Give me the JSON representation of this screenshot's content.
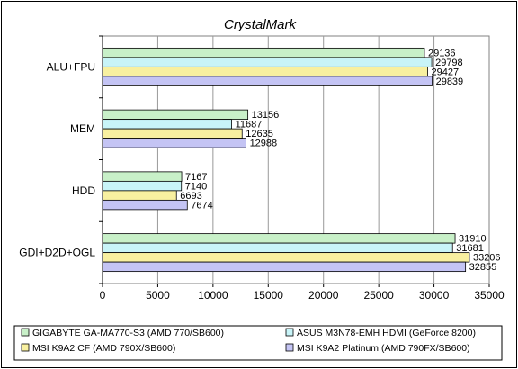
{
  "chart_data": {
    "type": "bar",
    "orientation": "horizontal",
    "title": "CrystalMark",
    "categories": [
      "ALU+FPU",
      "MEM",
      "HDD",
      "GDI+D2D+OGL"
    ],
    "series": [
      {
        "name": "GIGABYTE GA-MA770-S3 (AMD 770/SB600)",
        "color": "#c8f0c8",
        "values": [
          29136,
          13156,
          7167,
          31910
        ]
      },
      {
        "name": "ASUS M3N78-EMH HDMI (GeForce 8200)",
        "color": "#c8f4f8",
        "values": [
          29798,
          11687,
          7140,
          31681
        ]
      },
      {
        "name": "MSI K9A2 CF (AMD 790X/SB600)",
        "color": "#f8f0a0",
        "values": [
          29427,
          12635,
          6693,
          33206
        ]
      },
      {
        "name": "MSI K9A2 Platinum (AMD 790FX/SB600)",
        "color": "#c4c4f4",
        "values": [
          29839,
          12988,
          7674,
          32855
        ]
      }
    ],
    "xlim": [
      0,
      35000
    ],
    "xticks": [
      "0",
      "5000",
      "10000",
      "15000",
      "20000",
      "25000",
      "30000",
      "35000"
    ],
    "grid": true,
    "legend_position": "bottom"
  }
}
